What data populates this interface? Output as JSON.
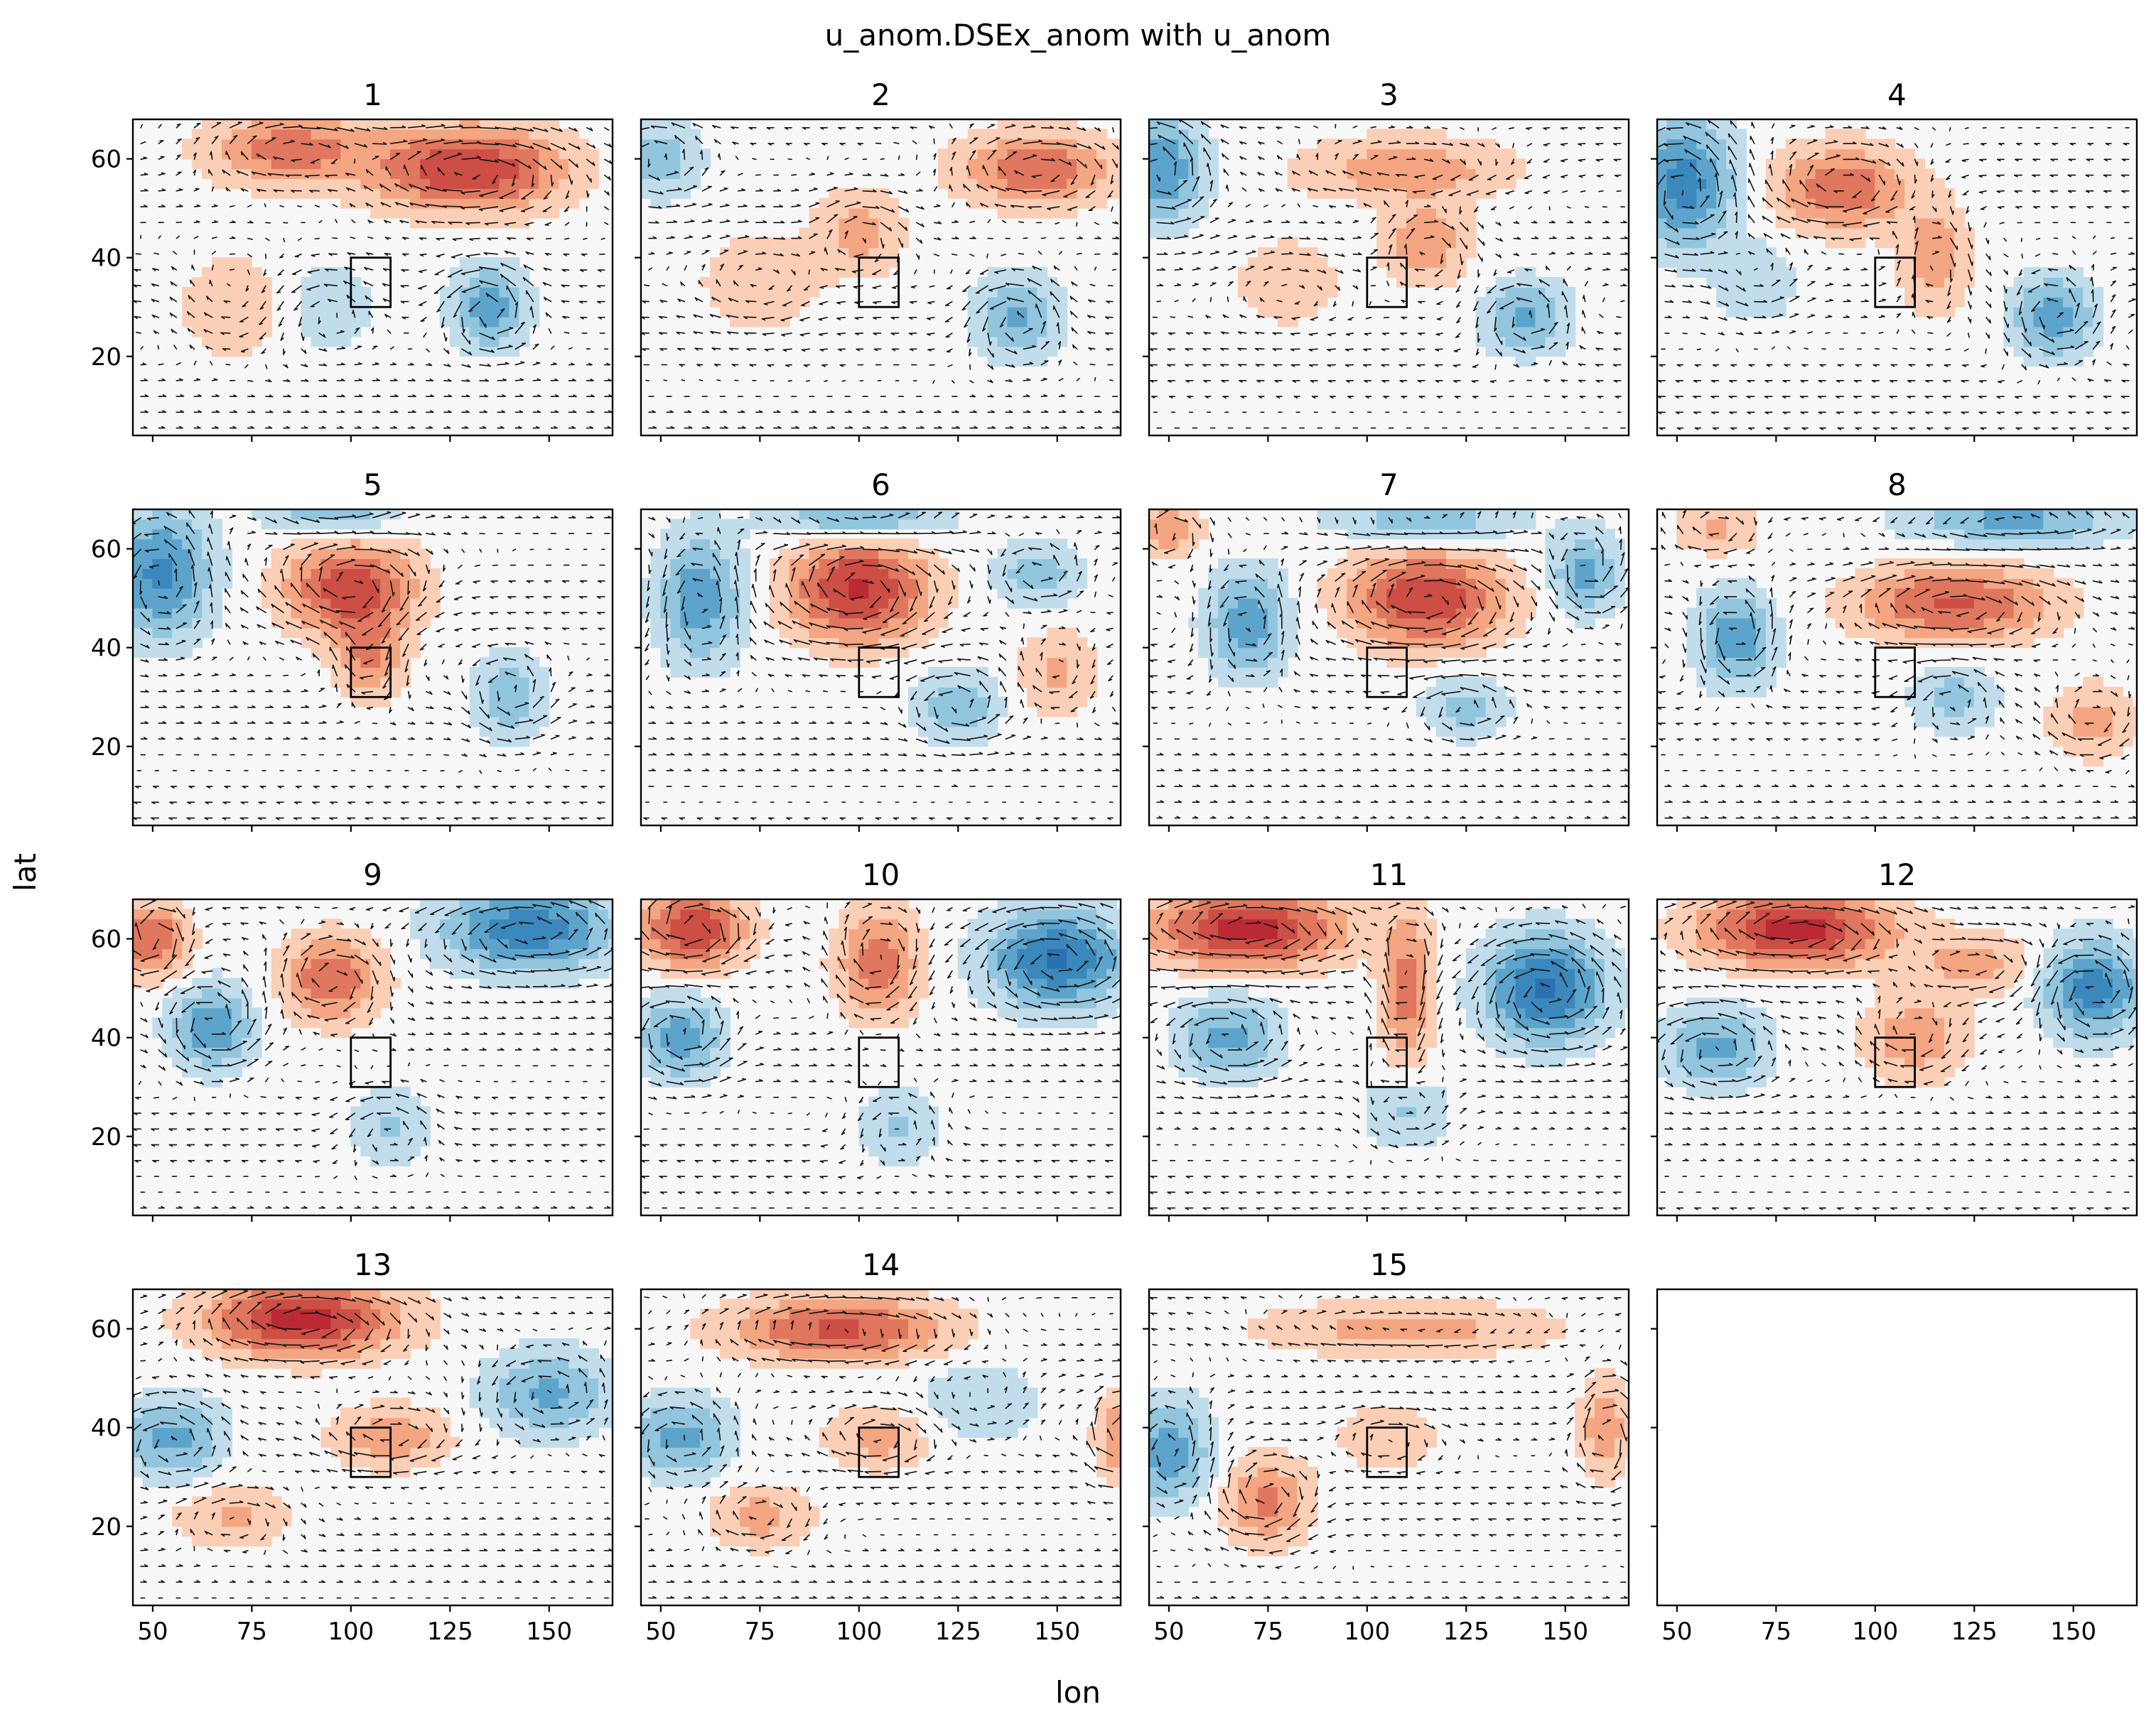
{
  "chart_data": {
    "type": "heatmap",
    "title": "u_anom.DSEx_anom with u_anom",
    "xlabel": "lon",
    "ylabel": "lat",
    "xlim": [
      45,
      166
    ],
    "ylim": [
      4,
      68
    ],
    "x_ticks": [
      50,
      75,
      100,
      125,
      150
    ],
    "y_ticks": [
      20,
      40,
      60
    ],
    "x_tick_labels": [
      "50",
      "75",
      "100",
      "125",
      "150"
    ],
    "y_tick_labels": [
      "20",
      "40",
      "60"
    ],
    "box_region": {
      "lon": [
        100,
        110
      ],
      "lat": [
        30,
        40
      ]
    },
    "colormap": "RdBu_r",
    "colors": {
      "positive": "#c93f35",
      "negative": "#2d6ea8",
      "neutral": "#f7f7f7"
    },
    "overlay": "quiver (wind anomaly vectors)",
    "grid": false,
    "rows": 4,
    "cols": 4,
    "panels": [
      {
        "title": "1",
        "blobs": [
          {
            "lon": 130,
            "lat": 58,
            "a": 0.8,
            "rx": 22,
            "ry": 8
          },
          {
            "lon": 85,
            "lat": 62,
            "a": 0.5,
            "rx": 20,
            "ry": 7
          },
          {
            "lon": 135,
            "lat": 30,
            "a": -0.5,
            "rx": 9,
            "ry": 8
          },
          {
            "lon": 70,
            "lat": 30,
            "a": 0.2,
            "rx": 12,
            "ry": 10
          },
          {
            "lon": 95,
            "lat": 30,
            "a": -0.2,
            "rx": 10,
            "ry": 8
          }
        ]
      },
      {
        "title": "2",
        "blobs": [
          {
            "lon": 145,
            "lat": 58,
            "a": 0.55,
            "rx": 18,
            "ry": 7
          },
          {
            "lon": 100,
            "lat": 45,
            "a": 0.3,
            "rx": 10,
            "ry": 8
          },
          {
            "lon": 140,
            "lat": 28,
            "a": -0.45,
            "rx": 10,
            "ry": 8
          },
          {
            "lon": 50,
            "lat": 60,
            "a": -0.3,
            "rx": 10,
            "ry": 8
          },
          {
            "lon": 75,
            "lat": 35,
            "a": 0.2,
            "rx": 14,
            "ry": 10
          }
        ]
      },
      {
        "title": "3",
        "blobs": [
          {
            "lon": 48,
            "lat": 58,
            "a": -0.6,
            "rx": 10,
            "ry": 10
          },
          {
            "lon": 110,
            "lat": 58,
            "a": 0.35,
            "rx": 25,
            "ry": 6
          },
          {
            "lon": 115,
            "lat": 43,
            "a": 0.35,
            "rx": 10,
            "ry": 8
          },
          {
            "lon": 140,
            "lat": 28,
            "a": -0.45,
            "rx": 10,
            "ry": 7
          },
          {
            "lon": 80,
            "lat": 35,
            "a": 0.15,
            "rx": 15,
            "ry": 10
          }
        ]
      },
      {
        "title": "4",
        "blobs": [
          {
            "lon": 52,
            "lat": 55,
            "a": -0.7,
            "rx": 12,
            "ry": 12
          },
          {
            "lon": 92,
            "lat": 54,
            "a": 0.55,
            "rx": 16,
            "ry": 8
          },
          {
            "lon": 115,
            "lat": 40,
            "a": 0.35,
            "rx": 8,
            "ry": 10
          },
          {
            "lon": 145,
            "lat": 28,
            "a": -0.5,
            "rx": 10,
            "ry": 8
          },
          {
            "lon": 70,
            "lat": 35,
            "a": -0.2,
            "rx": 10,
            "ry": 8
          }
        ]
      },
      {
        "title": "5",
        "blobs": [
          {
            "lon": 52,
            "lat": 55,
            "a": -0.65,
            "rx": 12,
            "ry": 12
          },
          {
            "lon": 100,
            "lat": 52,
            "a": 0.75,
            "rx": 15,
            "ry": 9
          },
          {
            "lon": 105,
            "lat": 38,
            "a": 0.4,
            "rx": 8,
            "ry": 8
          },
          {
            "lon": 140,
            "lat": 30,
            "a": -0.35,
            "rx": 9,
            "ry": 8
          },
          {
            "lon": 95,
            "lat": 68,
            "a": -0.4,
            "rx": 15,
            "ry": 5
          }
        ]
      },
      {
        "title": "6",
        "blobs": [
          {
            "lon": 100,
            "lat": 52,
            "a": 0.85,
            "rx": 16,
            "ry": 10
          },
          {
            "lon": 60,
            "lat": 50,
            "a": -0.55,
            "rx": 10,
            "ry": 12
          },
          {
            "lon": 100,
            "lat": 66,
            "a": -0.45,
            "rx": 20,
            "ry": 5
          },
          {
            "lon": 145,
            "lat": 55,
            "a": -0.35,
            "rx": 10,
            "ry": 6
          },
          {
            "lon": 125,
            "lat": 28,
            "a": -0.35,
            "rx": 10,
            "ry": 7
          },
          {
            "lon": 150,
            "lat": 35,
            "a": 0.25,
            "rx": 10,
            "ry": 8
          }
        ]
      },
      {
        "title": "7",
        "blobs": [
          {
            "lon": 115,
            "lat": 50,
            "a": 0.8,
            "rx": 18,
            "ry": 9
          },
          {
            "lon": 70,
            "lat": 45,
            "a": -0.5,
            "rx": 10,
            "ry": 10
          },
          {
            "lon": 115,
            "lat": 66,
            "a": -0.35,
            "rx": 22,
            "ry": 5
          },
          {
            "lon": 155,
            "lat": 55,
            "a": -0.45,
            "rx": 8,
            "ry": 8
          },
          {
            "lon": 50,
            "lat": 64,
            "a": 0.3,
            "rx": 8,
            "ry": 6
          },
          {
            "lon": 125,
            "lat": 28,
            "a": -0.3,
            "rx": 10,
            "ry": 6
          }
        ]
      },
      {
        "title": "8",
        "blobs": [
          {
            "lon": 120,
            "lat": 49,
            "a": 0.65,
            "rx": 22,
            "ry": 7
          },
          {
            "lon": 65,
            "lat": 42,
            "a": -0.55,
            "rx": 9,
            "ry": 9
          },
          {
            "lon": 135,
            "lat": 66,
            "a": -0.45,
            "rx": 25,
            "ry": 5
          },
          {
            "lon": 155,
            "lat": 25,
            "a": 0.3,
            "rx": 10,
            "ry": 7
          },
          {
            "lon": 120,
            "lat": 30,
            "a": -0.3,
            "rx": 10,
            "ry": 7
          },
          {
            "lon": 60,
            "lat": 64,
            "a": 0.25,
            "rx": 10,
            "ry": 5
          }
        ]
      },
      {
        "title": "9",
        "blobs": [
          {
            "lon": 145,
            "lat": 62,
            "a": -0.75,
            "rx": 20,
            "ry": 8
          },
          {
            "lon": 50,
            "lat": 60,
            "a": 0.6,
            "rx": 8,
            "ry": 7
          },
          {
            "lon": 95,
            "lat": 52,
            "a": 0.55,
            "rx": 12,
            "ry": 8
          },
          {
            "lon": 65,
            "lat": 42,
            "a": -0.55,
            "rx": 10,
            "ry": 8
          },
          {
            "lon": 110,
            "lat": 22,
            "a": -0.25,
            "rx": 10,
            "ry": 7
          }
        ]
      },
      {
        "title": "10",
        "blobs": [
          {
            "lon": 58,
            "lat": 62,
            "a": 0.8,
            "rx": 12,
            "ry": 7
          },
          {
            "lon": 105,
            "lat": 55,
            "a": 0.5,
            "rx": 10,
            "ry": 10
          },
          {
            "lon": 150,
            "lat": 56,
            "a": -0.85,
            "rx": 16,
            "ry": 9
          },
          {
            "lon": 55,
            "lat": 40,
            "a": -0.5,
            "rx": 10,
            "ry": 8
          },
          {
            "lon": 110,
            "lat": 22,
            "a": -0.25,
            "rx": 10,
            "ry": 7
          }
        ]
      },
      {
        "title": "11",
        "blobs": [
          {
            "lon": 70,
            "lat": 62,
            "a": 0.9,
            "rx": 22,
            "ry": 7
          },
          {
            "lon": 110,
            "lat": 50,
            "a": 0.5,
            "rx": 6,
            "ry": 14
          },
          {
            "lon": 145,
            "lat": 50,
            "a": -0.85,
            "rx": 14,
            "ry": 10
          },
          {
            "lon": 65,
            "lat": 40,
            "a": -0.45,
            "rx": 12,
            "ry": 8
          },
          {
            "lon": 110,
            "lat": 25,
            "a": -0.25,
            "rx": 10,
            "ry": 7
          }
        ]
      },
      {
        "title": "12",
        "blobs": [
          {
            "lon": 80,
            "lat": 62,
            "a": 0.9,
            "rx": 22,
            "ry": 7
          },
          {
            "lon": 155,
            "lat": 50,
            "a": -0.7,
            "rx": 12,
            "ry": 9
          },
          {
            "lon": 110,
            "lat": 40,
            "a": 0.35,
            "rx": 12,
            "ry": 8
          },
          {
            "lon": 60,
            "lat": 38,
            "a": -0.45,
            "rx": 12,
            "ry": 8
          },
          {
            "lon": 125,
            "lat": 55,
            "a": 0.3,
            "rx": 15,
            "ry": 6
          }
        ]
      },
      {
        "title": "13",
        "blobs": [
          {
            "lon": 88,
            "lat": 62,
            "a": 0.9,
            "rx": 22,
            "ry": 7
          },
          {
            "lon": 150,
            "lat": 47,
            "a": -0.45,
            "rx": 15,
            "ry": 8
          },
          {
            "lon": 110,
            "lat": 38,
            "a": 0.35,
            "rx": 14,
            "ry": 6
          },
          {
            "lon": 55,
            "lat": 38,
            "a": -0.45,
            "rx": 12,
            "ry": 8
          },
          {
            "lon": 70,
            "lat": 22,
            "a": 0.25,
            "rx": 14,
            "ry": 6
          }
        ]
      },
      {
        "title": "14",
        "blobs": [
          {
            "lon": 95,
            "lat": 60,
            "a": 0.65,
            "rx": 25,
            "ry": 6
          },
          {
            "lon": 55,
            "lat": 38,
            "a": -0.45,
            "rx": 12,
            "ry": 8
          },
          {
            "lon": 105,
            "lat": 38,
            "a": 0.3,
            "rx": 12,
            "ry": 6
          },
          {
            "lon": 75,
            "lat": 22,
            "a": 0.3,
            "rx": 12,
            "ry": 6
          },
          {
            "lon": 165,
            "lat": 38,
            "a": 0.4,
            "rx": 5,
            "ry": 8
          },
          {
            "lon": 130,
            "lat": 45,
            "a": -0.2,
            "rx": 15,
            "ry": 8
          }
        ]
      },
      {
        "title": "15",
        "blobs": [
          {
            "lon": 110,
            "lat": 60,
            "a": 0.3,
            "rx": 35,
            "ry": 5
          },
          {
            "lon": 50,
            "lat": 35,
            "a": -0.5,
            "rx": 10,
            "ry": 10
          },
          {
            "lon": 75,
            "lat": 25,
            "a": 0.45,
            "rx": 10,
            "ry": 8
          },
          {
            "lon": 160,
            "lat": 40,
            "a": 0.35,
            "rx": 6,
            "ry": 10
          },
          {
            "lon": 105,
            "lat": 38,
            "a": 0.2,
            "rx": 12,
            "ry": 6
          }
        ]
      },
      {
        "title": "",
        "empty": true,
        "blobs": []
      }
    ]
  }
}
